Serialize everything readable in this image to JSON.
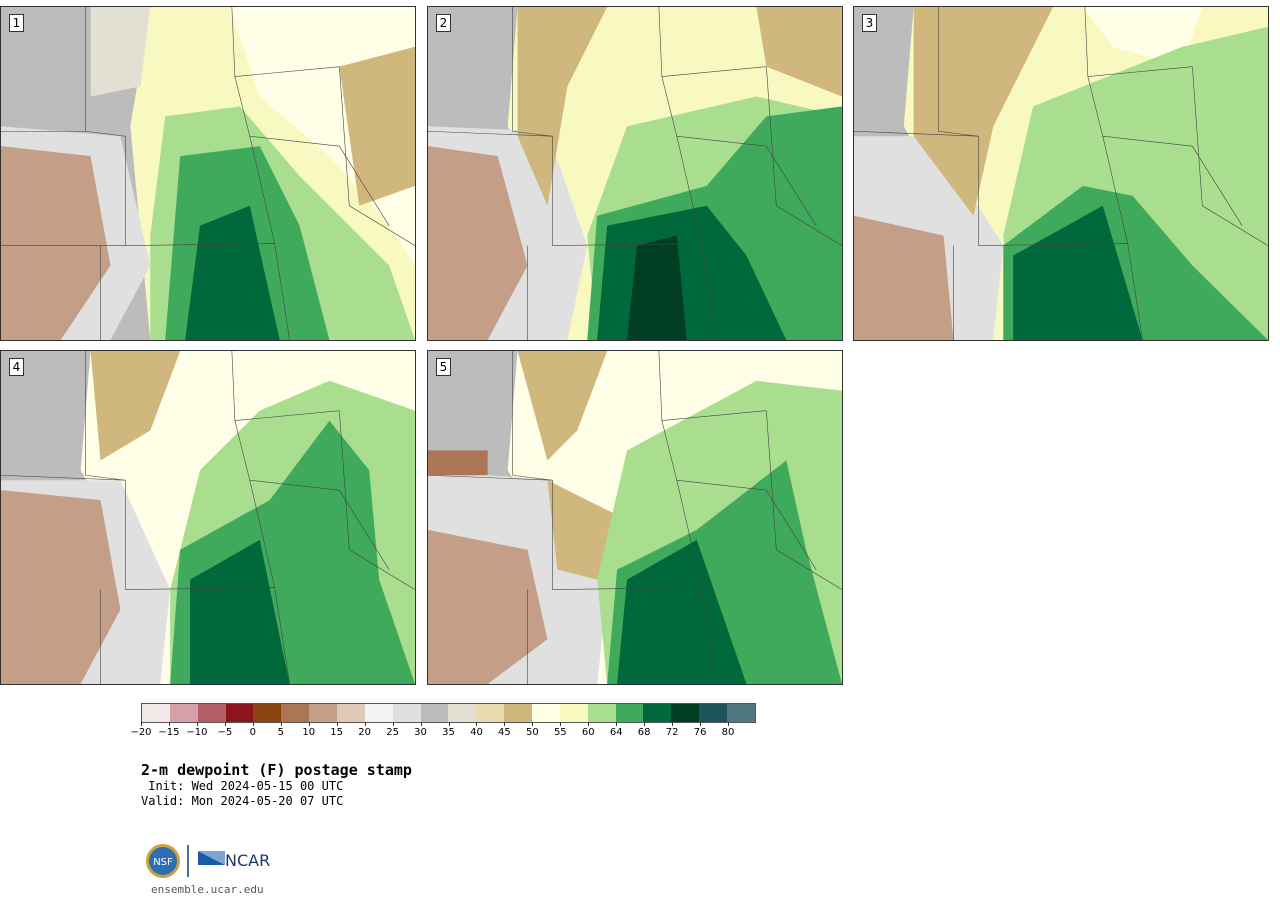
{
  "panels": [
    {
      "label": "1"
    },
    {
      "label": "2"
    },
    {
      "label": "3"
    },
    {
      "label": "4"
    },
    {
      "label": "5"
    }
  ],
  "colorbar": {
    "colors": [
      "#f3e7e7",
      "#d3a1a6",
      "#b25e64",
      "#8b141e",
      "#8c4510",
      "#ac7554",
      "#c49e86",
      "#e1c9b8",
      "#f2f2f2",
      "#e0e0e0",
      "#bcbcbc",
      "#e1e0d2",
      "#e9dbb0",
      "#cfb77d",
      "#fffee6",
      "#f7f9c0",
      "#a9de8f",
      "#40aa5c",
      "#00693b",
      "#003d22",
      "#1d545c",
      "#507881"
    ],
    "tick_labels": [
      "−20",
      "−15",
      "−10",
      "−5",
      "0",
      "5",
      "10",
      "15",
      "20",
      "25",
      "30",
      "35",
      "40",
      "45",
      "50",
      "55",
      "60",
      "64",
      "68",
      "72",
      "76",
      "80"
    ]
  },
  "title": {
    "main": "2-m dewpoint (F) postage stamp",
    "init": " Init: Wed 2024-05-15 00 UTC",
    "valid": "Valid: Mon 2024-05-20 07 UTC"
  },
  "footer": {
    "url": "ensemble.ucar.edu",
    "logo_nsf": "NSF",
    "logo_ncar": "NCAR"
  }
}
